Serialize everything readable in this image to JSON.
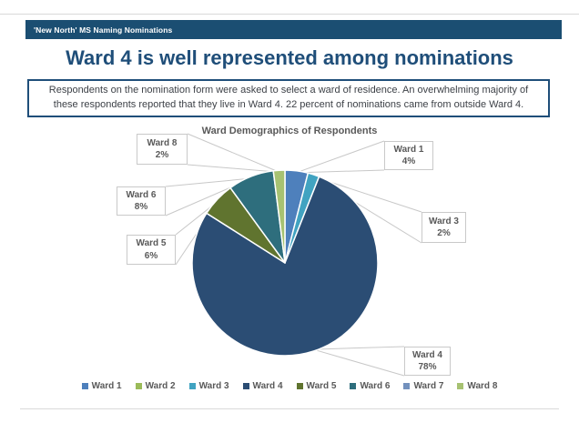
{
  "slide": {
    "header": {
      "text": "'New North' MS Naming Nominations",
      "bg_color": "#1b4e72",
      "text_color": "#ffffff"
    },
    "title": {
      "text": "Ward 4 is well represented among nominations",
      "color": "#1f4e79"
    },
    "callout": {
      "text": "Respondents on the nomination form were asked to select a ward of residence. An overwhelming majority of these respondents reported that they live in Ward 4.  22 percent of nominations came from outside Ward 4.",
      "border_color": "#1f4e79"
    }
  },
  "chart_data": {
    "type": "pie",
    "title": "Ward Demographics of Respondents",
    "categories": [
      "Ward 1",
      "Ward 2",
      "Ward 3",
      "Ward 4",
      "Ward 5",
      "Ward 6",
      "Ward 7",
      "Ward 8"
    ],
    "values": [
      4,
      0,
      2,
      78,
      6,
      8,
      0,
      2
    ],
    "unit": "percent",
    "colors": [
      "#4e80bc",
      "#9bbb59",
      "#41a3c1",
      "#2b4d74",
      "#60742f",
      "#2e6e7d",
      "#7391bd",
      "#a7c272"
    ],
    "start_angle_deg": 0,
    "direction": "clockwise",
    "slice_border_color": "#ffffff",
    "leader_line_color": "#c8c8c8",
    "legend_position": "bottom",
    "data_labels": [
      {
        "category": "Ward 1",
        "value_label": "4%"
      },
      {
        "category": "Ward 3",
        "value_label": "2%"
      },
      {
        "category": "Ward 4",
        "value_label": "78%"
      },
      {
        "category": "Ward 5",
        "value_label": "6%"
      },
      {
        "category": "Ward 6",
        "value_label": "8%"
      },
      {
        "category": "Ward 8",
        "value_label": "2%"
      }
    ]
  }
}
